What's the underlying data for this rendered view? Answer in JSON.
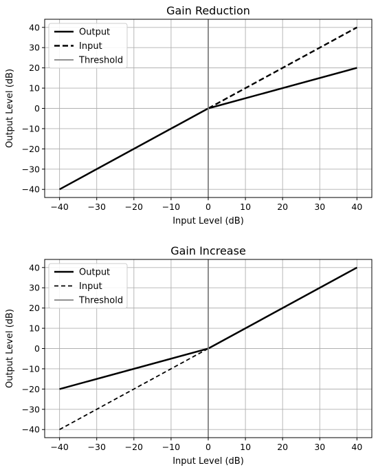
{
  "chart_data": [
    {
      "type": "line",
      "title": "Gain Reduction",
      "xlabel": "Input Level (dB)",
      "ylabel": "Output Level (dB)",
      "xlim": [
        -44,
        44
      ],
      "ylim": [
        -44,
        44
      ],
      "xticks": [
        -40,
        -30,
        -20,
        -10,
        0,
        10,
        20,
        30,
        40
      ],
      "yticks": [
        -40,
        -30,
        -20,
        -10,
        0,
        10,
        20,
        30,
        40
      ],
      "grid": true,
      "legend_position": "top-left",
      "threshold": 0,
      "series": [
        {
          "name": "Output",
          "style": "solid",
          "x": [
            -40,
            0,
            40
          ],
          "y": [
            -40,
            0,
            20
          ]
        },
        {
          "name": "Input",
          "style": "dashed",
          "x": [
            0,
            40
          ],
          "y": [
            0,
            40
          ]
        },
        {
          "name": "Threshold",
          "style": "vline",
          "x": [
            0,
            0
          ],
          "y": [
            -44,
            44
          ]
        }
      ]
    },
    {
      "type": "line",
      "title": "Gain Increase",
      "xlabel": "Input Level (dB)",
      "ylabel": "Output Level (dB)",
      "xlim": [
        -44,
        44
      ],
      "ylim": [
        -44,
        44
      ],
      "xticks": [
        -40,
        -30,
        -20,
        -10,
        0,
        10,
        20,
        30,
        40
      ],
      "yticks": [
        -40,
        -30,
        -20,
        -10,
        0,
        10,
        20,
        30,
        40
      ],
      "grid": true,
      "legend_position": "top-left",
      "threshold": 0,
      "series": [
        {
          "name": "Output",
          "style": "solid",
          "x": [
            -40,
            0,
            40
          ],
          "y": [
            -20,
            0,
            40
          ]
        },
        {
          "name": "Input",
          "style": "dashed",
          "x": [
            -40,
            0
          ],
          "y": [
            -40,
            0
          ]
        },
        {
          "name": "Threshold",
          "style": "vline",
          "x": [
            0,
            0
          ],
          "y": [
            -44,
            44
          ]
        }
      ]
    }
  ],
  "colors": {
    "series": "#000000",
    "threshold": "#808080",
    "grid": "#b0b0b0"
  }
}
